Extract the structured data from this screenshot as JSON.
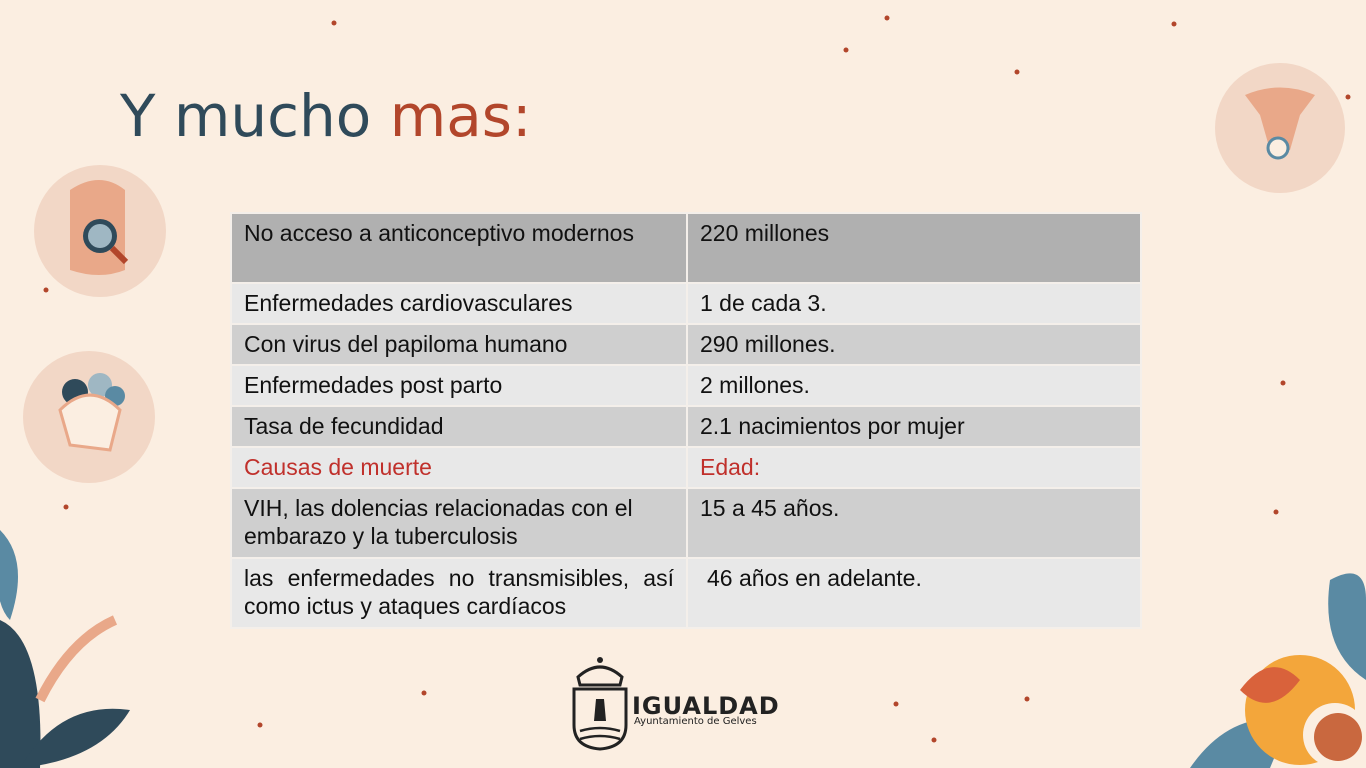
{
  "title": {
    "part1": "Y mucho",
    "part2": "mas:"
  },
  "table": {
    "rows": [
      [
        "No acceso a anticonceptivo modernos",
        "220 millones"
      ],
      [
        "Enfermedades cardiovasculares",
        "1 de cada 3."
      ],
      [
        "Con virus del papiloma humano",
        "290 millones."
      ],
      [
        "Enfermedades post parto",
        "2 millones."
      ],
      [
        "Tasa de fecundidad",
        "2.1 nacimientos por mujer"
      ],
      [
        "Causas de muerte",
        "Edad:"
      ],
      [
        "VIH, las dolencias relacionadas con el embarazo y la tuberculosis",
        "15 a 45 años."
      ],
      [
        "las enfermedades no transmisibles, así como ictus y ataques cardíacos",
        "46 años en adelante."
      ]
    ]
  },
  "logo": {
    "name": "IGUALDAD",
    "subtitle": "Ayuntamiento de Gelves"
  }
}
